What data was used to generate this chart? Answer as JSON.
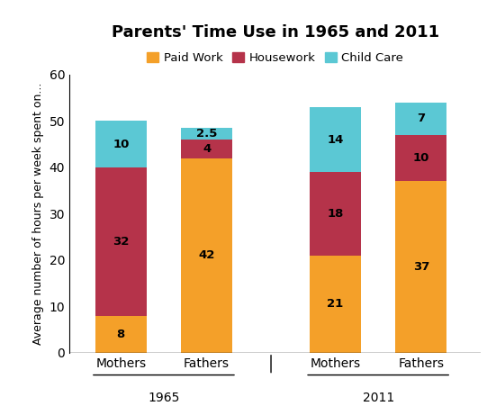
{
  "title": "Parents' Time Use in 1965 and 2011",
  "ylabel": "Average number of hours per week spent on...",
  "ylim": [
    0,
    60
  ],
  "yticks": [
    0,
    10,
    20,
    30,
    40,
    50,
    60
  ],
  "bar_width": 0.6,
  "group_labels": [
    "1965",
    "2011"
  ],
  "bar_labels": [
    "Mothers",
    "Fathers",
    "Mothers",
    "Fathers"
  ],
  "paid_work": [
    8,
    42,
    21,
    37
  ],
  "housework": [
    32,
    4,
    18,
    10
  ],
  "child_care": [
    10,
    2.5,
    14,
    7
  ],
  "colors": {
    "paid_work": "#F4A029",
    "housework": "#B5334A",
    "child_care": "#5BC8D4"
  },
  "legend_labels": [
    "Paid Work",
    "Housework",
    "Child Care"
  ],
  "bar_positions": [
    1,
    2,
    3.5,
    4.5
  ],
  "group_centers": [
    1.5,
    4.0
  ],
  "xlim": [
    0.4,
    5.2
  ]
}
